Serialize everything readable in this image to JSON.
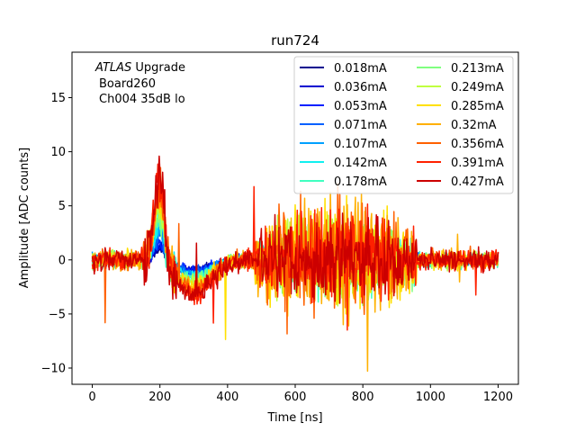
{
  "chart_data": {
    "type": "line",
    "title": "run724",
    "xlabel": "Time [ns]",
    "ylabel": "Amplitude [ADC counts]",
    "xlim": [
      -60,
      1260
    ],
    "ylim": [
      -11.5,
      19.2
    ],
    "xticks": [
      0,
      200,
      400,
      600,
      800,
      1000,
      1200
    ],
    "yticks": [
      -10,
      -5,
      0,
      5,
      10,
      15
    ],
    "grid": false,
    "legend_position": "top-right",
    "legend_columns": 2,
    "annotation": {
      "italic": "ATLAS",
      "rest": " Upgrade",
      "line2": "Board260",
      "line3": "Ch004 35dB lo"
    },
    "series": [
      {
        "name": "0.018mA",
        "color": "#00008f",
        "pulse_peak": 1.0,
        "undershoot": -0.9,
        "burst": 0.3
      },
      {
        "name": "0.036mA",
        "color": "#0000d0",
        "pulse_peak": 1.4,
        "undershoot": -1.0,
        "burst": 0.5
      },
      {
        "name": "0.053mA",
        "color": "#0020ff",
        "pulse_peak": 1.8,
        "undershoot": -1.1,
        "burst": 0.7
      },
      {
        "name": "0.071mA",
        "color": "#0060ff",
        "pulse_peak": 2.2,
        "undershoot": -1.2,
        "burst": 0.9
      },
      {
        "name": "0.107mA",
        "color": "#00a0ff",
        "pulse_peak": 2.8,
        "undershoot": -1.4,
        "burst": 1.2
      },
      {
        "name": "0.142mA",
        "color": "#10f0f0",
        "pulse_peak": 3.3,
        "undershoot": -1.6,
        "burst": 1.6
      },
      {
        "name": "0.178mA",
        "color": "#40ffc0",
        "pulse_peak": 3.8,
        "undershoot": -1.8,
        "burst": 2.0
      },
      {
        "name": "0.213mA",
        "color": "#80ff80",
        "pulse_peak": 4.3,
        "undershoot": -2.0,
        "burst": 2.4
      },
      {
        "name": "0.249mA",
        "color": "#c0ff40",
        "pulse_peak": 4.8,
        "undershoot": -2.2,
        "burst": 3.0
      },
      {
        "name": "0.285mA",
        "color": "#ffe000",
        "pulse_peak": 5.4,
        "undershoot": -2.4,
        "burst": 3.8
      },
      {
        "name": "0.32mA",
        "color": "#ffb000",
        "pulse_peak": 6.0,
        "undershoot": -2.6,
        "burst": 4.2
      },
      {
        "name": "0.356mA",
        "color": "#ff6000",
        "pulse_peak": 6.6,
        "undershoot": -2.8,
        "burst": 3.6
      },
      {
        "name": "0.391mA",
        "color": "#ff2000",
        "pulse_peak": 7.2,
        "undershoot": -3.0,
        "burst": 3.2
      },
      {
        "name": "0.427mA",
        "color": "#cc0000",
        "pulse_peak": 7.8,
        "undershoot": -3.2,
        "burst": 2.6
      }
    ]
  }
}
